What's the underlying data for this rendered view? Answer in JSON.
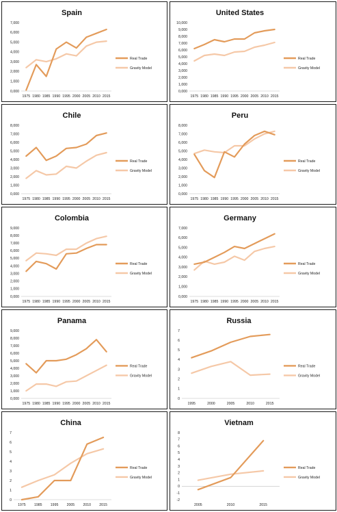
{
  "legend": {
    "real": "Real Trade",
    "gravity": "Gravity Model"
  },
  "colors": {
    "real": "#e39b5a",
    "gravity": "#f5c8a7"
  },
  "chart_data": [
    {
      "type": "line",
      "title": "Spain",
      "x": [
        1975,
        1980,
        1985,
        1990,
        1995,
        2000,
        2005,
        2010,
        2015
      ],
      "xticks": [
        "1975",
        "1980",
        "1985",
        "1990",
        "1995",
        "2000",
        "2005",
        "2010",
        "2015"
      ],
      "ylim": [
        0,
        7
      ],
      "yticks": [
        "0,000",
        "1,000",
        "2,000",
        "3,000",
        "4,000",
        "5,000",
        "6,000",
        "7,000"
      ],
      "series": [
        {
          "name": "Real Trade",
          "values": [
            0.1,
            2.7,
            1.5,
            4.3,
            5.0,
            4.4,
            5.5,
            5.9,
            6.3
          ]
        },
        {
          "name": "Gravity Model",
          "values": [
            2.4,
            3.2,
            3.0,
            3.3,
            3.8,
            3.6,
            4.6,
            5.0,
            5.1
          ]
        }
      ]
    },
    {
      "type": "line",
      "title": "United States",
      "x": [
        1975,
        1980,
        1985,
        1990,
        1995,
        2000,
        2005,
        2010,
        2015
      ],
      "xticks": [
        "1975",
        "1980",
        "1985",
        "1990",
        "1995",
        "2000",
        "2005",
        "2010",
        "2015"
      ],
      "ylim": [
        0,
        10
      ],
      "yticks": [
        "0,000",
        "1,000",
        "2,000",
        "3,000",
        "4,000",
        "5,000",
        "6,000",
        "7,000",
        "8,000",
        "9,000",
        "10,000"
      ],
      "series": [
        {
          "name": "Real Trade",
          "values": [
            6.2,
            6.8,
            7.5,
            7.2,
            7.6,
            7.6,
            8.5,
            8.8,
            9.0
          ]
        },
        {
          "name": "Gravity Model",
          "values": [
            4.4,
            5.2,
            5.4,
            5.2,
            5.7,
            5.8,
            6.4,
            6.7,
            7.1
          ]
        }
      ]
    },
    {
      "type": "line",
      "title": "Chile",
      "x": [
        1975,
        1980,
        1985,
        1990,
        1995,
        2000,
        2005,
        2010,
        2015
      ],
      "xticks": [
        "1975",
        "1980",
        "1985",
        "1990",
        "1995",
        "2000",
        "2005",
        "2010",
        "2015"
      ],
      "ylim": [
        0,
        8
      ],
      "yticks": [
        "0,000",
        "1,000",
        "2,000",
        "3,000",
        "4,000",
        "5,000",
        "6,000",
        "7,000",
        "8,000"
      ],
      "series": [
        {
          "name": "Real Trade",
          "values": [
            4.4,
            5.4,
            3.9,
            4.4,
            5.3,
            5.4,
            5.8,
            6.8,
            7.1
          ]
        },
        {
          "name": "Gravity Model",
          "values": [
            1.8,
            2.7,
            2.2,
            2.3,
            3.2,
            3.0,
            3.8,
            4.5,
            4.8
          ]
        }
      ]
    },
    {
      "type": "line",
      "title": "Peru",
      "x": [
        1975,
        1980,
        1985,
        1990,
        1995,
        2000,
        2005,
        2010,
        2015
      ],
      "xticks": [
        "1975",
        "1980",
        "1985",
        "1990",
        "1995",
        "2000",
        "2005",
        "2010",
        "2015"
      ],
      "ylim": [
        0,
        8
      ],
      "yticks": [
        "0,000",
        "1,000",
        "2,000",
        "3,000",
        "4,000",
        "5,000",
        "6,000",
        "7,000",
        "8,000"
      ],
      "series": [
        {
          "name": "Real Trade",
          "values": [
            4.6,
            2.7,
            1.9,
            4.9,
            4.3,
            5.8,
            6.8,
            7.3,
            6.9
          ]
        },
        {
          "name": "Gravity Model",
          "values": [
            4.7,
            5.1,
            4.9,
            4.8,
            5.6,
            5.6,
            6.4,
            7.0,
            7.3
          ]
        }
      ]
    },
    {
      "type": "line",
      "title": "Colombia",
      "x": [
        1975,
        1980,
        1985,
        1990,
        1995,
        2000,
        2005,
        2010,
        2015
      ],
      "xticks": [
        "1975",
        "1980",
        "1985",
        "1990",
        "1995",
        "2000",
        "2005",
        "2010",
        "2015"
      ],
      "ylim": [
        0,
        9
      ],
      "yticks": [
        "0,000",
        "1,000",
        "2,000",
        "3,000",
        "4,000",
        "5,000",
        "6,000",
        "7,000",
        "8,000",
        "9,000"
      ],
      "series": [
        {
          "name": "Real Trade",
          "values": [
            3.3,
            4.6,
            4.3,
            3.6,
            5.6,
            5.7,
            6.3,
            6.8,
            6.8
          ]
        },
        {
          "name": "Gravity Model",
          "values": [
            4.7,
            5.7,
            5.6,
            5.4,
            6.2,
            6.2,
            7.0,
            7.6,
            7.9
          ]
        }
      ]
    },
    {
      "type": "line",
      "title": "Germany",
      "x": [
        1975,
        1980,
        1985,
        1990,
        1995,
        2000,
        2005,
        2010,
        2015
      ],
      "xticks": [
        "1975",
        "1980",
        "1985",
        "1990",
        "1995",
        "2000",
        "2005",
        "2010",
        "2015"
      ],
      "ylim": [
        0,
        7
      ],
      "yticks": [
        "0,000",
        "1,000",
        "2,000",
        "3,000",
        "4,000",
        "5,000",
        "6,000",
        "7,000"
      ],
      "series": [
        {
          "name": "Real Trade",
          "values": [
            3.3,
            3.5,
            4.0,
            4.5,
            5.1,
            4.9,
            5.4,
            5.9,
            6.4
          ]
        },
        {
          "name": "Gravity Model",
          "values": [
            2.7,
            3.6,
            3.3,
            3.5,
            4.1,
            3.7,
            4.6,
            4.9,
            5.1
          ]
        }
      ]
    },
    {
      "type": "line",
      "title": "Panama",
      "x": [
        1975,
        1980,
        1985,
        1990,
        1995,
        2000,
        2005,
        2010,
        2015
      ],
      "xticks": [
        "1975",
        "1980",
        "1985",
        "1990",
        "1995",
        "2000",
        "2005",
        "2010",
        "2015"
      ],
      "ylim": [
        0,
        9
      ],
      "yticks": [
        "0,000",
        "1,000",
        "2,000",
        "3,000",
        "4,000",
        "5,000",
        "6,000",
        "7,000",
        "8,000",
        "9,000"
      ],
      "series": [
        {
          "name": "Real Trade",
          "values": [
            4.6,
            3.4,
            5.0,
            5.0,
            5.2,
            5.8,
            6.6,
            7.8,
            6.2
          ]
        },
        {
          "name": "Gravity Model",
          "values": [
            1.0,
            1.9,
            1.9,
            1.6,
            2.2,
            2.3,
            3.0,
            3.7,
            4.4
          ]
        }
      ]
    },
    {
      "type": "line",
      "title": "Russia",
      "x": [
        1995,
        2000,
        2005,
        2010,
        2015
      ],
      "xticks": [
        "1995",
        "2000",
        "2005",
        "2010",
        "2015"
      ],
      "ylim": [
        0,
        7
      ],
      "yticks": [
        "0",
        "1",
        "2",
        "3",
        "4",
        "5",
        "6",
        "7"
      ],
      "series": [
        {
          "name": "Real Trade",
          "values": [
            4.2,
            4.9,
            5.8,
            6.4,
            6.6
          ]
        },
        {
          "name": "Gravity Model",
          "values": [
            2.6,
            3.3,
            3.8,
            2.4,
            2.5
          ]
        }
      ]
    },
    {
      "type": "line",
      "title": "China",
      "x": [
        1975,
        1985,
        1995,
        2005,
        2010,
        2015
      ],
      "xticks": [
        "1975",
        "1985",
        "1995",
        "2005",
        "2010",
        "2015"
      ],
      "ylim": [
        0,
        7
      ],
      "yticks": [
        "0",
        "1",
        "2",
        "3",
        "4",
        "5",
        "6",
        "7"
      ],
      "series": [
        {
          "name": "Real Trade",
          "values": [
            0,
            0.3,
            2.0,
            2.0,
            5.8,
            6.5
          ]
        },
        {
          "name": "Gravity Model",
          "values": [
            1.3,
            2.0,
            2.6,
            3.8,
            4.8,
            5.3
          ]
        }
      ]
    },
    {
      "type": "line",
      "title": "Vietnam",
      "x": [
        2005,
        2010,
        2015
      ],
      "xticks": [
        "2005",
        "2010",
        "2015"
      ],
      "ylim": [
        -2,
        8
      ],
      "yticks": [
        "-2",
        "-1",
        "0",
        "1",
        "2",
        "3",
        "4",
        "5",
        "6",
        "7",
        "8"
      ],
      "series": [
        {
          "name": "Real Trade",
          "values": [
            -0.5,
            1.3,
            6.8
          ]
        },
        {
          "name": "Gravity Model",
          "values": [
            0.9,
            1.8,
            2.3
          ]
        }
      ]
    }
  ]
}
